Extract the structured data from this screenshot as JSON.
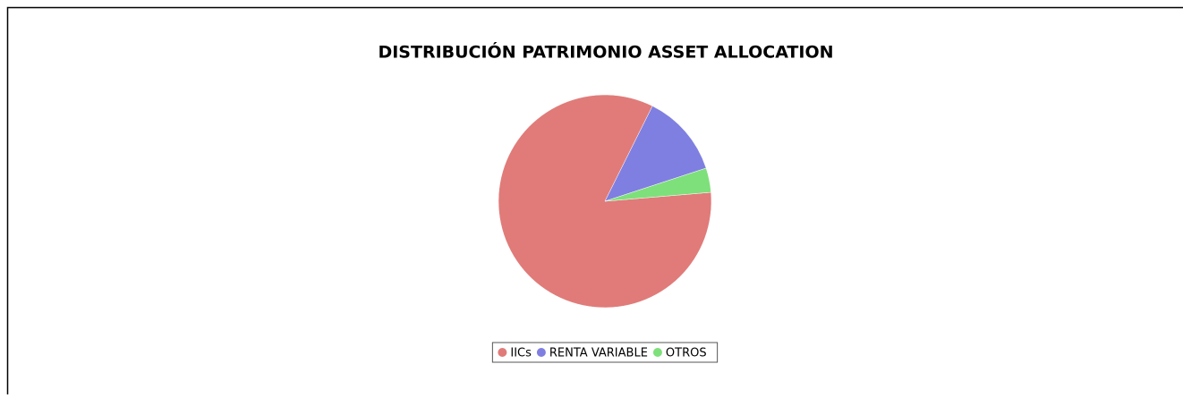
{
  "chart_data": {
    "type": "pie",
    "title": "DISTRIBUCIÓN PATRIMONIO ASSET ALLOCATION",
    "categories": [
      "IICs",
      "RENTA VARIABLE",
      "OTROS"
    ],
    "values": [
      83.7,
      12.6,
      3.7
    ],
    "colors": [
      "#e07b79",
      "#7f7fe1",
      "#7ee07a"
    ],
    "legend": "bottom"
  }
}
